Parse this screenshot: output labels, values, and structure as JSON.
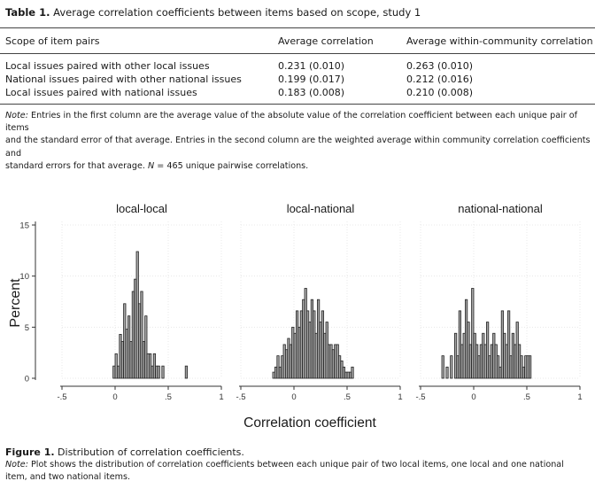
{
  "table": {
    "label": "Table 1.",
    "caption": "Average correlation coefficients between items based on scope, study 1",
    "headers": [
      "Scope of item pairs",
      "Average correlation",
      "Average within-community correlation"
    ],
    "rows": [
      [
        "Local issues paired with other local issues",
        "0.231 (0.010)",
        "0.263 (0.010)"
      ],
      [
        "National issues paired with other national issues",
        "0.199 (0.017)",
        "0.212 (0.016)"
      ],
      [
        "Local issues paired with national issues",
        "0.183 (0.008)",
        "0.210 (0.008)"
      ]
    ],
    "note_label": "Note:",
    "note_line1": " Entries in the first column are the average value of the absolute value of the correlation coefficient between each unique pair of items",
    "note_line2": "and the standard error of that average. Entries in the second column are the weighted average within community correlation coefficients and",
    "note_line3_pre": "standard errors for that average. ",
    "note_n": "N",
    "note_line3_post": " = 465 unique pairwise correlations."
  },
  "figure": {
    "label": "Figure 1.",
    "caption": "Distribution of correlation coefficients.",
    "note_label": "Note:",
    "note_line1": " Plot shows the distribution of correlation coefficients between each unique pair of two local items, one local and one national",
    "note_line2": "item, and two national items."
  },
  "chart_data": {
    "type": "bar",
    "ylabel": "Percent",
    "xlabel": "Correlation coefficient",
    "xlim": [
      -0.5,
      1
    ],
    "ylim": [
      0,
      15
    ],
    "xticks": [
      -0.5,
      0,
      0.5,
      1
    ],
    "xtick_labels": [
      "-.5",
      "0",
      ".5",
      "1"
    ],
    "yticks": [
      0,
      5,
      10,
      15
    ],
    "ytick_labels": [
      "0",
      "5",
      "10",
      "15"
    ],
    "bin_width": 0.02,
    "grid": true,
    "bar_color": "#a6a6a6",
    "panels": [
      {
        "title": "local-local",
        "bin_starts": [
          -0.02,
          0,
          0.02,
          0.04,
          0.06,
          0.08,
          0.1,
          0.12,
          0.14,
          0.16,
          0.18,
          0.2,
          0.22,
          0.24,
          0.26,
          0.28,
          0.3,
          0.32,
          0.34,
          0.36,
          0.38,
          0.4,
          0.42,
          0.44,
          0.66
        ],
        "values": [
          1.2,
          2.4,
          1.2,
          4.3,
          3.6,
          7.3,
          4.8,
          6.1,
          3.6,
          8.5,
          9.7,
          12.4,
          7.3,
          8.5,
          3.6,
          6.1,
          2.4,
          2.4,
          1.2,
          2.4,
          1.2,
          1.2,
          0,
          1.2,
          1.2
        ]
      },
      {
        "title": "local-national",
        "bin_starts": [
          -0.2,
          -0.18,
          -0.16,
          -0.14,
          -0.12,
          -0.1,
          -0.08,
          -0.06,
          -0.04,
          -0.02,
          0,
          0.02,
          0.04,
          0.06,
          0.08,
          0.1,
          0.12,
          0.14,
          0.16,
          0.18,
          0.2,
          0.22,
          0.24,
          0.26,
          0.28,
          0.3,
          0.32,
          0.34,
          0.36,
          0.38,
          0.4,
          0.42,
          0.44,
          0.46,
          0.48,
          0.5,
          0.52,
          0.54
        ],
        "values": [
          0.6,
          1.1,
          2.2,
          1.1,
          2.2,
          3.3,
          2.8,
          3.9,
          3.3,
          5.0,
          4.4,
          6.6,
          5.0,
          6.6,
          7.7,
          8.8,
          6.6,
          5.5,
          7.7,
          6.6,
          4.4,
          7.7,
          5.5,
          6.6,
          4.4,
          5.5,
          3.3,
          3.3,
          2.8,
          3.3,
          3.3,
          2.2,
          1.7,
          1.1,
          0.6,
          0.6,
          0.6,
          1.1
        ]
      },
      {
        "title": "national-national",
        "bin_starts": [
          -0.3,
          -0.26,
          -0.22,
          -0.18,
          -0.16,
          -0.14,
          -0.12,
          -0.1,
          -0.08,
          -0.06,
          -0.04,
          -0.02,
          0,
          0.02,
          0.04,
          0.06,
          0.08,
          0.1,
          0.12,
          0.14,
          0.16,
          0.18,
          0.2,
          0.22,
          0.24,
          0.26,
          0.28,
          0.3,
          0.32,
          0.34,
          0.36,
          0.38,
          0.4,
          0.42,
          0.44,
          0.46,
          0.48,
          0.5,
          0.52
        ],
        "values": [
          2.2,
          1.1,
          2.2,
          4.4,
          2.2,
          6.6,
          3.3,
          4.4,
          7.7,
          5.5,
          3.3,
          8.8,
          4.4,
          3.3,
          2.2,
          3.3,
          4.4,
          3.3,
          5.5,
          2.2,
          3.3,
          4.4,
          3.3,
          2.2,
          1.1,
          6.6,
          4.4,
          3.3,
          6.6,
          2.2,
          4.4,
          3.3,
          5.5,
          3.3,
          2.2,
          1.1,
          2.2,
          2.2,
          2.2
        ]
      }
    ]
  }
}
